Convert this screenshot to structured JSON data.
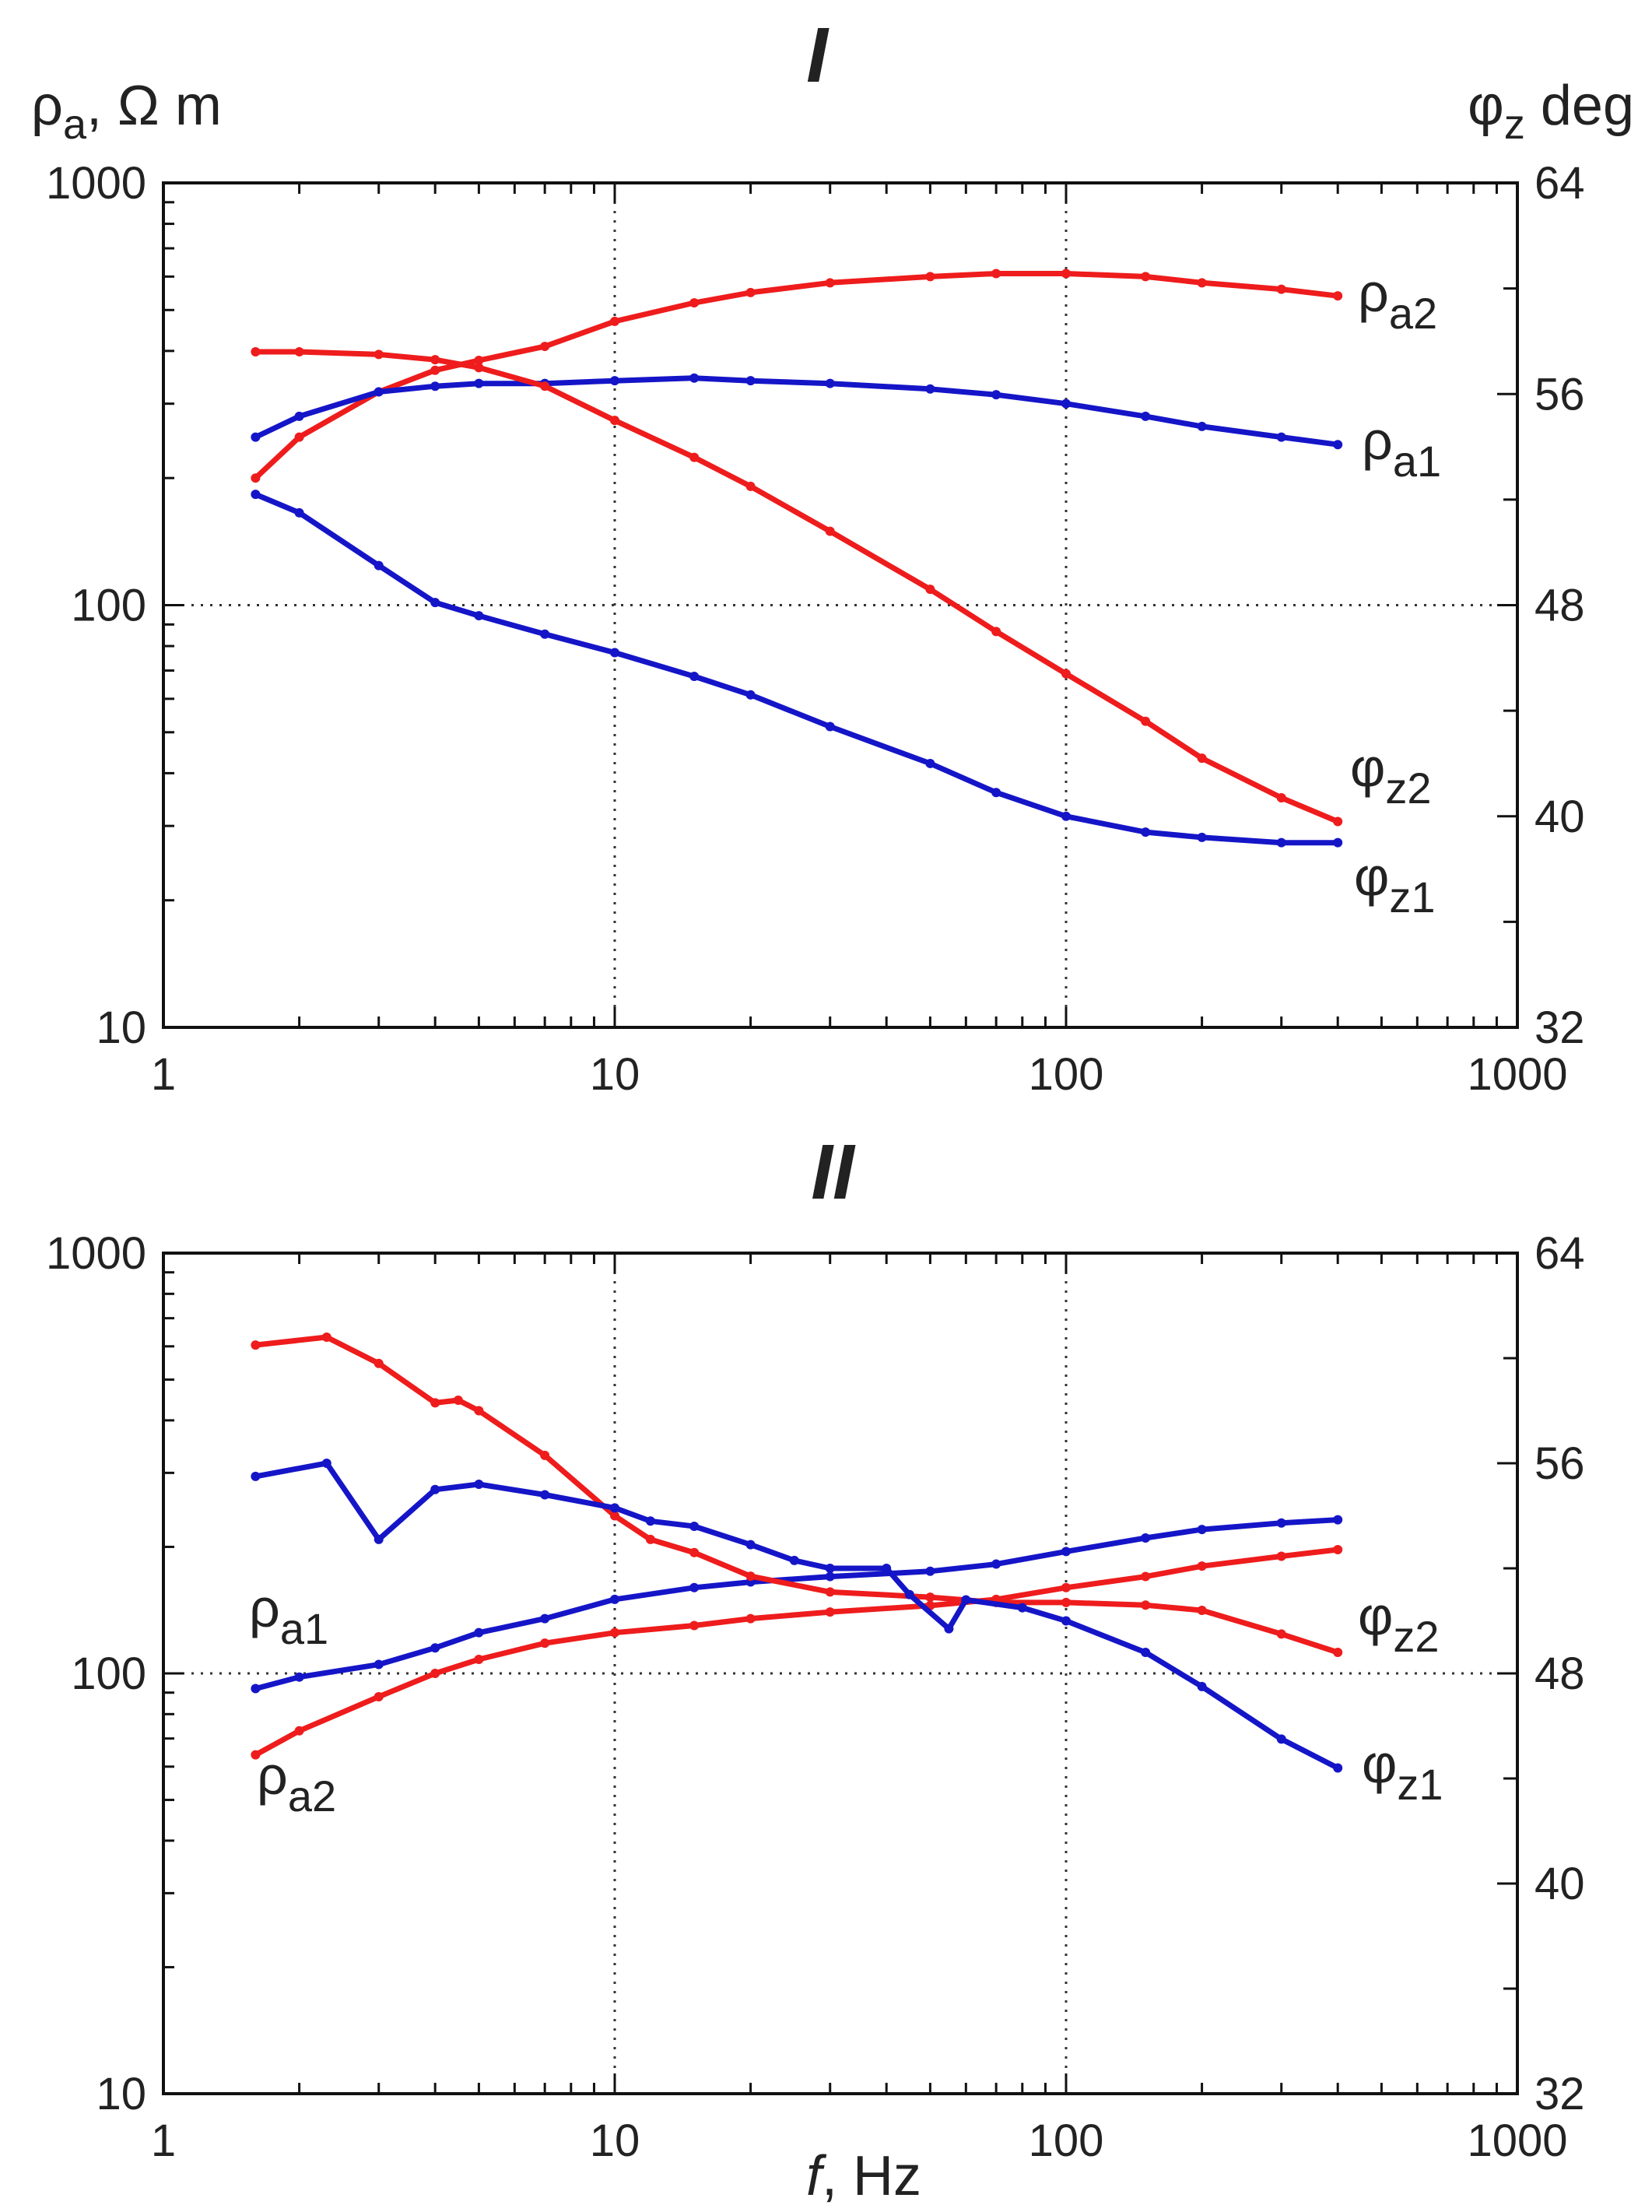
{
  "chart_data": [
    {
      "type": "line",
      "title": "I",
      "xlabel": "",
      "ylabel_left": "ρa, Ω m",
      "ylabel_right": "φz deg",
      "xscale": "log",
      "xlim": [
        1,
        1000
      ],
      "ylim_left": [
        10,
        1000
      ],
      "ylim_right": [
        32,
        64
      ],
      "x_ticks": [
        "1",
        "10",
        "100",
        "1000"
      ],
      "y_ticks_left": [
        "10",
        "100",
        "1000"
      ],
      "y_ticks_right": [
        "32",
        "40",
        "48",
        "56",
        "64"
      ],
      "grid": "dotted at x=10,100 and y=100",
      "series": [
        {
          "name": "ρa2",
          "axis": "left",
          "color": "#ee1c1c",
          "x": [
            1.6,
            2,
            3,
            4,
            5,
            7,
            10,
            15,
            20,
            30,
            50,
            70,
            100,
            150,
            200,
            300,
            400
          ],
          "y": [
            200,
            250,
            320,
            360,
            380,
            410,
            470,
            520,
            550,
            580,
            600,
            610,
            610,
            600,
            580,
            560,
            540
          ]
        },
        {
          "name": "ρa1",
          "axis": "left",
          "color": "#1515c8",
          "x": [
            1.6,
            2,
            3,
            4,
            5,
            7,
            10,
            15,
            20,
            30,
            50,
            70,
            100,
            150,
            200,
            300,
            400
          ],
          "y": [
            250,
            280,
            320,
            330,
            335,
            335,
            340,
            345,
            340,
            335,
            325,
            315,
            300,
            280,
            265,
            250,
            240
          ]
        },
        {
          "name": "φz2",
          "axis": "right",
          "color": "#ee1c1c",
          "x": [
            1.6,
            2,
            3,
            4,
            5,
            7,
            10,
            15,
            20,
            30,
            50,
            70,
            100,
            150,
            200,
            300,
            400
          ],
          "y": [
            57.6,
            57.6,
            57.5,
            57.3,
            57.0,
            56.3,
            55.0,
            53.6,
            52.5,
            50.8,
            48.6,
            47.0,
            45.4,
            43.6,
            42.2,
            40.7,
            39.8
          ]
        },
        {
          "name": "φz1",
          "axis": "right",
          "color": "#1515c8",
          "x": [
            1.6,
            2,
            3,
            4,
            5,
            7,
            10,
            15,
            20,
            30,
            50,
            70,
            100,
            150,
            200,
            300,
            400
          ],
          "y": [
            52.2,
            51.5,
            49.5,
            48.1,
            47.6,
            46.9,
            46.2,
            45.3,
            44.6,
            43.4,
            42.0,
            40.9,
            40.0,
            39.4,
            39.2,
            39.0,
            39.0
          ]
        }
      ],
      "labels": [
        "ρa2",
        "ρa1",
        "φz2",
        "φz1"
      ]
    },
    {
      "type": "line",
      "title": "II",
      "xlabel": "f, Hz",
      "xscale": "log",
      "xlim": [
        1,
        1000
      ],
      "ylim_left": [
        10,
        1000
      ],
      "ylim_right": [
        32,
        64
      ],
      "x_ticks": [
        "1",
        "10",
        "100",
        "1000"
      ],
      "y_ticks_left": [
        "10",
        "100",
        "1000"
      ],
      "y_ticks_right": [
        "32",
        "40",
        "48",
        "56",
        "64"
      ],
      "grid": "dotted at x=10,100 and y=100",
      "series": [
        {
          "name": "ρa1",
          "axis": "left",
          "color": "#1515c8",
          "x": [
            1.6,
            2,
            3,
            4,
            5,
            7,
            10,
            15,
            20,
            30,
            50,
            70,
            100,
            150,
            200,
            300,
            400
          ],
          "y": [
            92,
            98,
            105,
            115,
            125,
            135,
            150,
            160,
            165,
            170,
            175,
            182,
            195,
            210,
            220,
            228,
            232
          ]
        },
        {
          "name": "ρa2",
          "axis": "left",
          "color": "#ee1c1c",
          "x": [
            1.6,
            2,
            3,
            4,
            5,
            7,
            10,
            15,
            20,
            30,
            50,
            70,
            100,
            150,
            200,
            300,
            400
          ],
          "y": [
            64,
            73,
            88,
            100,
            108,
            118,
            125,
            130,
            135,
            140,
            145,
            150,
            160,
            170,
            180,
            190,
            197
          ]
        },
        {
          "name": "φz2",
          "axis": "right",
          "color": "#ee1c1c",
          "x": [
            1.6,
            2.3,
            3,
            4,
            4.5,
            5,
            7,
            10,
            12,
            15,
            20,
            30,
            50,
            70,
            100,
            150,
            200,
            300,
            400
          ],
          "y": [
            60.5,
            60.8,
            59.8,
            58.3,
            58.4,
            58.0,
            56.3,
            54.0,
            53.1,
            52.6,
            51.7,
            51.1,
            50.9,
            50.7,
            50.7,
            50.6,
            50.4,
            49.5,
            48.8
          ]
        },
        {
          "name": "φz1",
          "axis": "right",
          "color": "#1515c8",
          "x": [
            1.6,
            2.3,
            3,
            4,
            5,
            7,
            10,
            12,
            15,
            20,
            25,
            30,
            40,
            45,
            55,
            60,
            80,
            100,
            150,
            200,
            300,
            400
          ],
          "y": [
            55.5,
            56.0,
            53.1,
            55.0,
            55.2,
            54.8,
            54.3,
            53.8,
            53.6,
            52.9,
            52.3,
            52.0,
            52.0,
            51.0,
            49.7,
            50.8,
            50.5,
            50.0,
            48.8,
            47.5,
            45.5,
            44.4
          ]
        }
      ],
      "labels": [
        "ρa1",
        "ρa2",
        "φz2",
        "φz1"
      ]
    }
  ]
}
